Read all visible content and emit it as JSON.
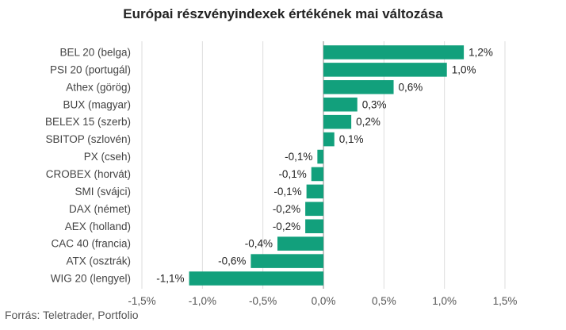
{
  "chart_data": {
    "type": "bar",
    "orientation": "horizontal",
    "title": "Európai részvényindexek értékének mai változása",
    "source": "Forrás: Teletrader, Portfolio",
    "categories": [
      "BEL 20 (belga)",
      "PSI 20 (portugál)",
      "Athex (görög)",
      "BUX (magyar)",
      "BELEX 15 (szerb)",
      "SBITOP (szlovén)",
      "PX (cseh)",
      "CROBEX (horvát)",
      "SMI (svájci)",
      "DAX (német)",
      "AEX (holland)",
      "CAC 40 (francia)",
      "ATX (osztrák)",
      "WIG 20 (lengyel)"
    ],
    "values": [
      1.16,
      1.02,
      0.58,
      0.28,
      0.23,
      0.09,
      -0.05,
      -0.1,
      -0.14,
      -0.15,
      -0.15,
      -0.38,
      -0.6,
      -1.11
    ],
    "value_labels": [
      "1,2%",
      "1,0%",
      "0,6%",
      "0,3%",
      "0,2%",
      "0,1%",
      "-0,1%",
      "-0,1%",
      "-0,1%",
      "-0,2%",
      "-0,2%",
      "-0,4%",
      "-0,6%",
      "-1,1%"
    ],
    "xlim": [
      -1.5,
      1.5
    ],
    "x_ticks": [
      -1.5,
      -1.0,
      -0.5,
      0.0,
      0.5,
      1.0,
      1.5
    ],
    "x_tick_labels": [
      "-1,5%",
      "-1,0%",
      "-0,5%",
      "0,0%",
      "0,5%",
      "1,0%",
      "1,5%"
    ],
    "bar_color": "#12a07c",
    "grid": true
  }
}
